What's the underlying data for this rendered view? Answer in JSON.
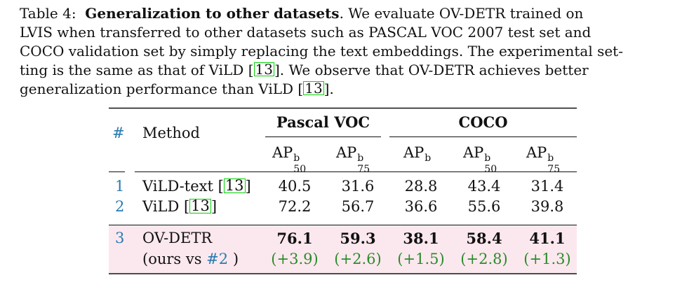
{
  "caption": {
    "label": "Table 4:",
    "title": "Generalization to other datasets",
    "line1_rest": ". We evaluate OV-DETR trained on",
    "line2": "LVIS when transferred to other datasets such as PASCAL VOC 2007 test set and",
    "line3": "COCO validation set by simply replacing the text embeddings. The experimental set-",
    "line4_a": "ting is the same as that of ViLD [",
    "cite": "13",
    "line4_b": "]. We observe that OV-DETR achieves better",
    "line5_a": "generalization performance than ViLD [",
    "line5_b": "]."
  },
  "table": {
    "hash_header": "#",
    "method_header": "Method",
    "group1": "Pascal VOC",
    "group2": "COCO",
    "metric_ap": "AP",
    "sup_b": "b",
    "sub_50": "50",
    "sub_75": "75",
    "rows": [
      {
        "num": "1",
        "method": "ViLD-text [",
        "cite": "13",
        "method_end": "]",
        "v": [
          "40.5",
          "31.6",
          "28.8",
          "43.4",
          "31.4"
        ]
      },
      {
        "num": "2",
        "method": "ViLD [",
        "cite": "13",
        "method_end": "]",
        "v": [
          "72.2",
          "56.7",
          "36.6",
          "55.6",
          "39.8"
        ]
      }
    ],
    "ours": {
      "num": "3",
      "method": "OV-DETR",
      "v": [
        "76.1",
        "59.3",
        "38.1",
        "58.4",
        "41.1"
      ],
      "sub_a": "(ours vs ",
      "sub_ref": "#2",
      "sub_b": " )",
      "gains": [
        "(+3.9)",
        "(+2.6)",
        "(+1.5)",
        "(+2.8)",
        "(+1.3)"
      ]
    }
  },
  "colors": {
    "link": "#2a7ab0",
    "gain": "#2b8b2b",
    "highlight": "#fbe8ee",
    "cite_box": "#00d400"
  }
}
